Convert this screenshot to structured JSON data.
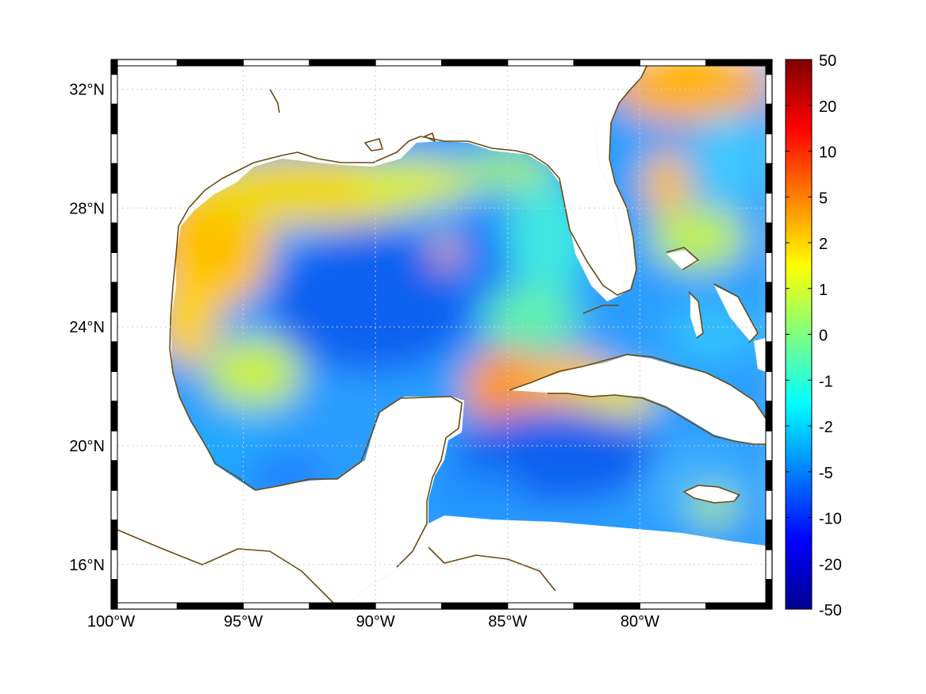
{
  "map": {
    "extent": {
      "lon_min": -100,
      "lon_max": -75,
      "lat_min": 14.5,
      "lat_max": 33
    },
    "lon_ticks": [
      {
        "value": -100,
        "label": "100°W"
      },
      {
        "value": -95,
        "label": "95°W"
      },
      {
        "value": -90,
        "label": "90°W"
      },
      {
        "value": -85,
        "label": "85°W"
      },
      {
        "value": -80,
        "label": "80°W"
      }
    ],
    "lat_ticks": [
      {
        "value": 32,
        "label": "32°N"
      },
      {
        "value": 28,
        "label": "28°N"
      },
      {
        "value": 24,
        "label": "24°N"
      },
      {
        "value": 20,
        "label": "20°N"
      },
      {
        "value": 16,
        "label": "16°N"
      }
    ],
    "grid": true,
    "frame": "black-white checkered border",
    "coastline_color": "#6b4a12",
    "land_color": "#ffffff"
  },
  "colorbar": {
    "colormap": "jet",
    "colors": [
      "#00008f",
      "#0000ff",
      "#0080ff",
      "#00ffff",
      "#80ff80",
      "#ffff00",
      "#ff8000",
      "#ff0000",
      "#800000"
    ],
    "ticks": [
      "50",
      "20",
      "10",
      "5",
      "2",
      "1",
      "0",
      "-1",
      "-2",
      "-5",
      "-10",
      "-20",
      "-50"
    ],
    "placement": "right"
  },
  "field_features": [
    {
      "name": "gulf-center-low",
      "value": -5
    },
    {
      "name": "west-shelf-high",
      "value": 2
    },
    {
      "name": "north-shelf-high",
      "value": 2
    },
    {
      "name": "yucatan-channel-high",
      "value": 5
    },
    {
      "name": "atlantic-high",
      "value": 3
    },
    {
      "name": "caribbean-low",
      "value": -5
    }
  ]
}
